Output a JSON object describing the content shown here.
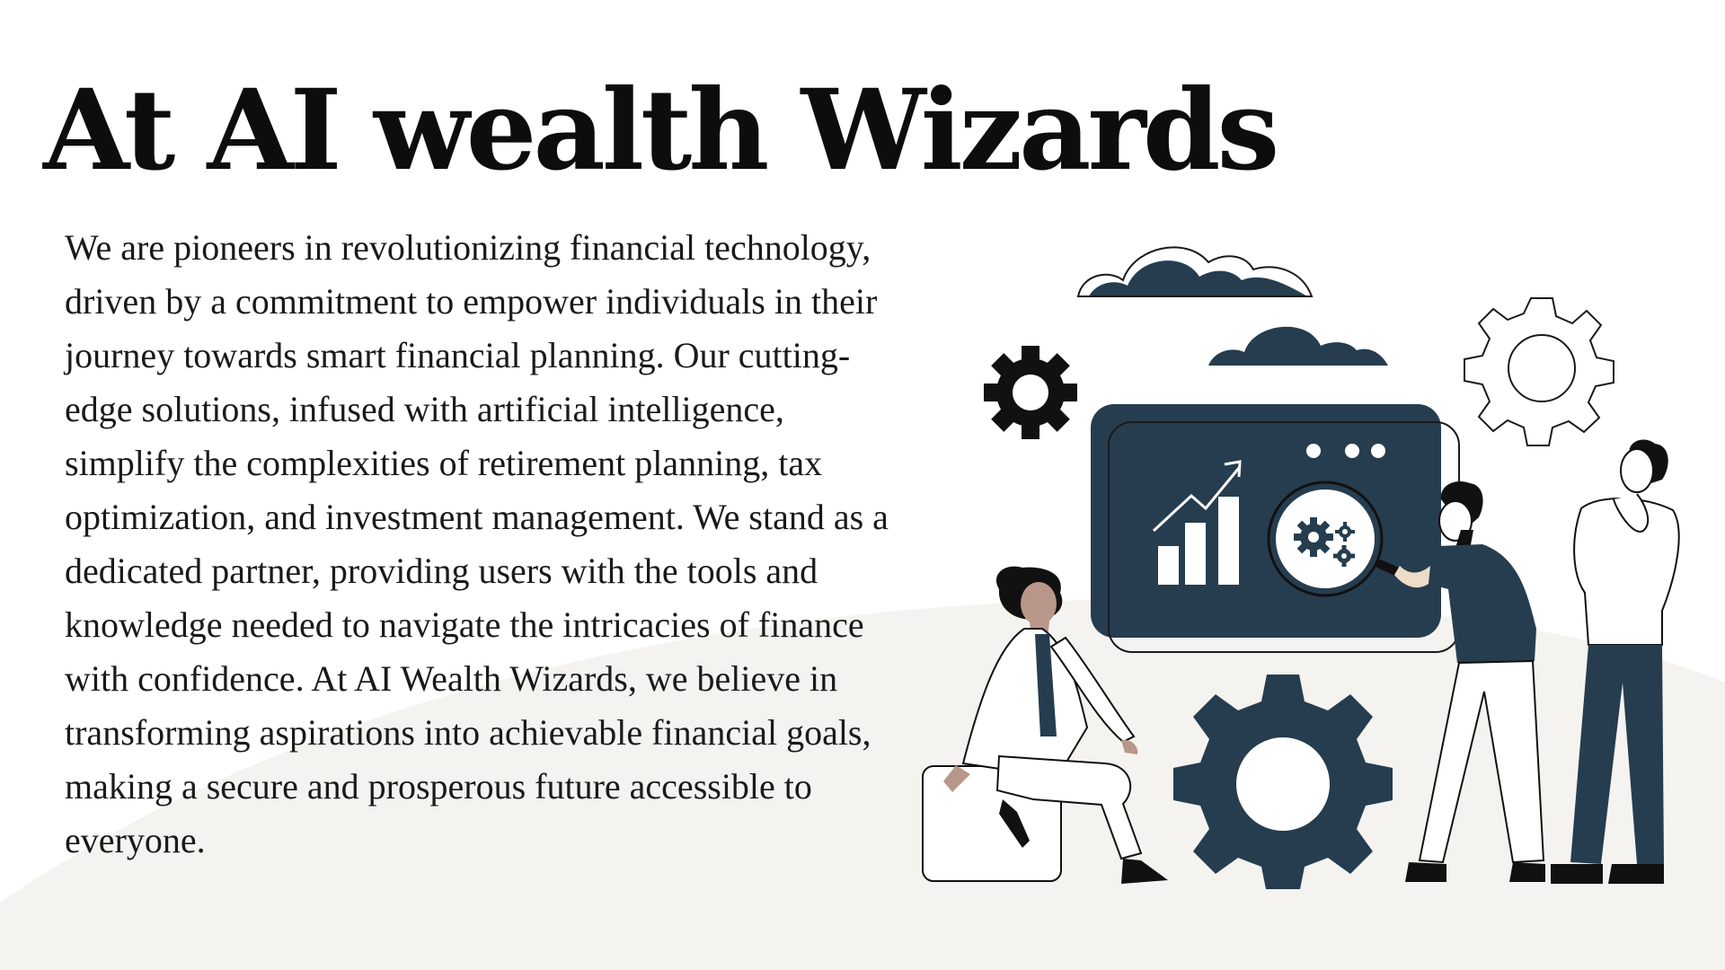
{
  "slide": {
    "title": "At AI wealth Wizards",
    "body": "We are pioneers in revolutionizing financial technology, driven by a commitment to empower individuals in their journey towards smart financial planning. Our cutting-edge solutions, infused with artificial intelligence, simplify the complexities of retirement planning, tax optimization, and investment management. We stand as a dedicated partner, providing users with the tools and knowledge needed to navigate the intricacies of finance with confidence. At AI Wealth Wizards, we believe in transforming aspirations into achievable financial goals, making a secure and prosperous future accessible to everyone."
  },
  "colors": {
    "background": "#ffffff",
    "hill": "#f4f3ef",
    "navy": "#263d4f",
    "text": "#1a1a1a",
    "skin": "#b8978a"
  },
  "illustration": {
    "icons": [
      "cloud-icon",
      "gear-icon",
      "bar-chart-icon",
      "trend-arrow-icon",
      "magnifier-icon",
      "person-figure"
    ]
  }
}
